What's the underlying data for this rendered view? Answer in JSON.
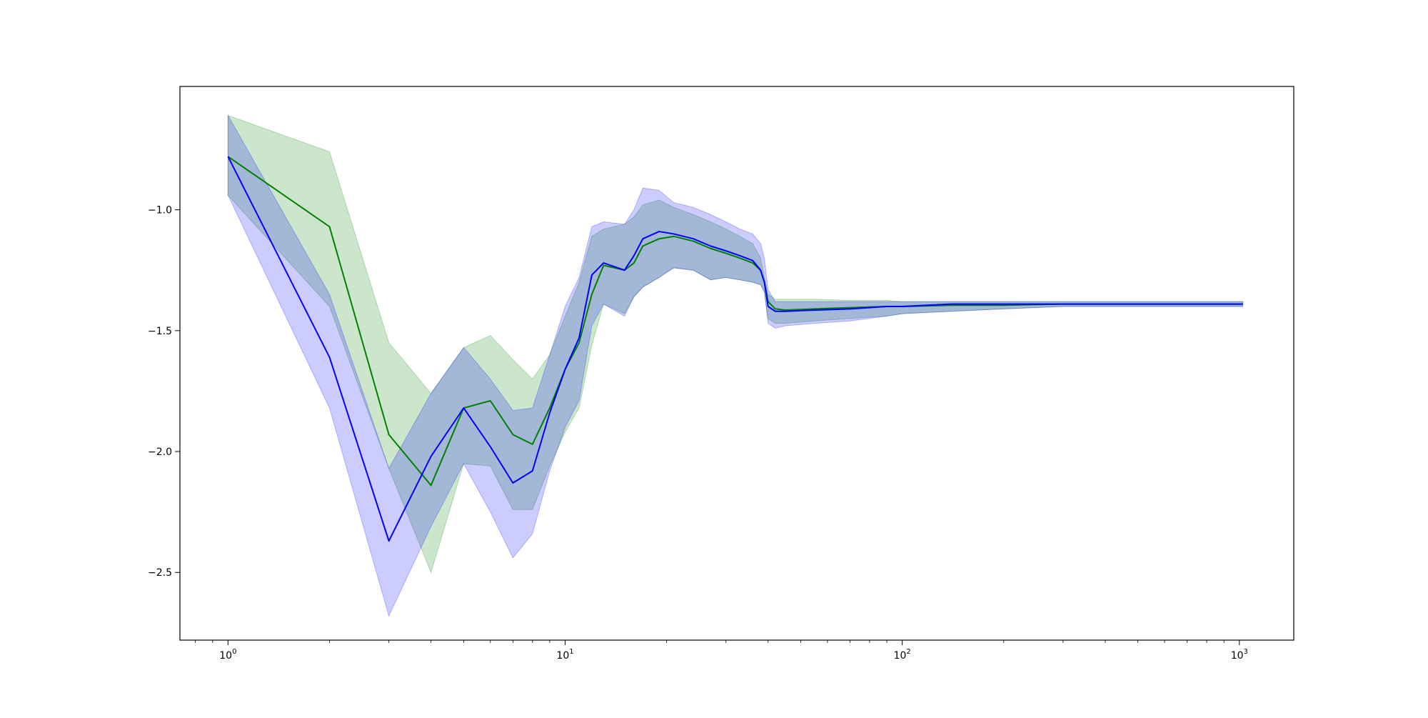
{
  "chart_data": {
    "type": "line",
    "title": "",
    "xlabel": "",
    "ylabel": "",
    "x_scale": "log",
    "xlim": [
      0.72,
      1450
    ],
    "ylim": [
      -2.78,
      -0.49
    ],
    "grid": false,
    "legend": "none",
    "x_ticks": [
      {
        "value": 1,
        "base": "10",
        "exp": "0"
      },
      {
        "value": 10,
        "base": "10",
        "exp": "1"
      },
      {
        "value": 100,
        "base": "10",
        "exp": "2"
      },
      {
        "value": 1000,
        "base": "10",
        "exp": "3"
      }
    ],
    "y_ticks": [
      {
        "value": -1.0,
        "label": "−1.0"
      },
      {
        "value": -1.5,
        "label": "−1.5"
      },
      {
        "value": -2.0,
        "label": "−2.0"
      },
      {
        "value": -2.5,
        "label": "−2.5"
      }
    ],
    "series": [
      {
        "color": "#008000",
        "band_color": "#008000",
        "x": [
          1,
          2,
          3,
          4,
          5,
          6,
          7,
          8,
          9,
          10,
          11,
          12,
          13,
          15,
          16,
          17,
          19,
          21,
          24,
          27,
          30,
          33,
          36,
          38,
          39,
          40,
          42,
          45,
          55,
          70,
          90,
          100,
          140,
          200,
          300,
          500,
          1024
        ],
        "y": [
          -0.78,
          -1.07,
          -1.93,
          -2.14,
          -1.82,
          -1.79,
          -1.93,
          -1.97,
          -1.82,
          -1.66,
          -1.55,
          -1.35,
          -1.23,
          -1.25,
          -1.22,
          -1.15,
          -1.12,
          -1.11,
          -1.13,
          -1.16,
          -1.18,
          -1.2,
          -1.22,
          -1.25,
          -1.3,
          -1.38,
          -1.41,
          -1.415,
          -1.41,
          -1.405,
          -1.4,
          -1.4,
          -1.395,
          -1.395,
          -1.39,
          -1.39,
          -1.39
        ],
        "upper": [
          -0.61,
          -0.76,
          -1.55,
          -1.76,
          -1.57,
          -1.52,
          -1.62,
          -1.7,
          -1.6,
          -1.44,
          -1.3,
          -1.11,
          -1.08,
          -1.06,
          -1.03,
          -0.98,
          -0.96,
          -0.99,
          -1.02,
          -1.05,
          -1.08,
          -1.11,
          -1.14,
          -1.2,
          -1.28,
          -1.35,
          -1.37,
          -1.37,
          -1.37,
          -1.375,
          -1.375,
          -1.38,
          -1.38,
          -1.38,
          -1.38,
          -1.38,
          -1.38
        ],
        "lower": [
          -0.94,
          -1.4,
          -2.07,
          -2.5,
          -2.05,
          -2.06,
          -2.24,
          -2.24,
          -2.06,
          -1.92,
          -1.82,
          -1.56,
          -1.39,
          -1.43,
          -1.36,
          -1.32,
          -1.28,
          -1.24,
          -1.25,
          -1.29,
          -1.28,
          -1.29,
          -1.3,
          -1.31,
          -1.34,
          -1.45,
          -1.47,
          -1.47,
          -1.46,
          -1.45,
          -1.44,
          -1.43,
          -1.42,
          -1.41,
          -1.4,
          -1.4,
          -1.4
        ]
      },
      {
        "color": "#0000ff",
        "band_color": "#0000ff",
        "x": [
          1,
          2,
          3,
          4,
          5,
          6,
          7,
          8,
          9,
          10,
          11,
          12,
          13,
          15,
          16,
          17,
          19,
          21,
          24,
          27,
          30,
          33,
          36,
          38,
          39,
          40,
          42,
          45,
          55,
          70,
          90,
          100,
          140,
          200,
          300,
          500,
          1024
        ],
        "y": [
          -0.78,
          -1.61,
          -2.37,
          -2.02,
          -1.82,
          -1.98,
          -2.13,
          -2.08,
          -1.84,
          -1.66,
          -1.53,
          -1.27,
          -1.22,
          -1.25,
          -1.19,
          -1.12,
          -1.09,
          -1.1,
          -1.12,
          -1.15,
          -1.17,
          -1.19,
          -1.21,
          -1.25,
          -1.3,
          -1.4,
          -1.42,
          -1.42,
          -1.415,
          -1.41,
          -1.4,
          -1.4,
          -1.39,
          -1.39,
          -1.39,
          -1.39,
          -1.39
        ],
        "upper": [
          -0.61,
          -1.35,
          -2.07,
          -1.76,
          -1.57,
          -1.7,
          -1.83,
          -1.82,
          -1.6,
          -1.4,
          -1.28,
          -1.07,
          -1.05,
          -1.06,
          -1.0,
          -0.91,
          -0.92,
          -0.97,
          -0.99,
          -1.02,
          -1.05,
          -1.08,
          -1.1,
          -1.14,
          -1.2,
          -1.33,
          -1.38,
          -1.38,
          -1.38,
          -1.38,
          -1.38,
          -1.38,
          -1.38,
          -1.38,
          -1.38,
          -1.38,
          -1.38
        ],
        "lower": [
          -0.94,
          -1.82,
          -2.68,
          -2.31,
          -2.05,
          -2.25,
          -2.44,
          -2.34,
          -2.08,
          -1.9,
          -1.79,
          -1.48,
          -1.39,
          -1.44,
          -1.36,
          -1.32,
          -1.28,
          -1.24,
          -1.25,
          -1.29,
          -1.28,
          -1.29,
          -1.3,
          -1.31,
          -1.34,
          -1.47,
          -1.49,
          -1.48,
          -1.47,
          -1.46,
          -1.44,
          -1.43,
          -1.42,
          -1.41,
          -1.4,
          -1.4,
          -1.4
        ]
      }
    ]
  }
}
